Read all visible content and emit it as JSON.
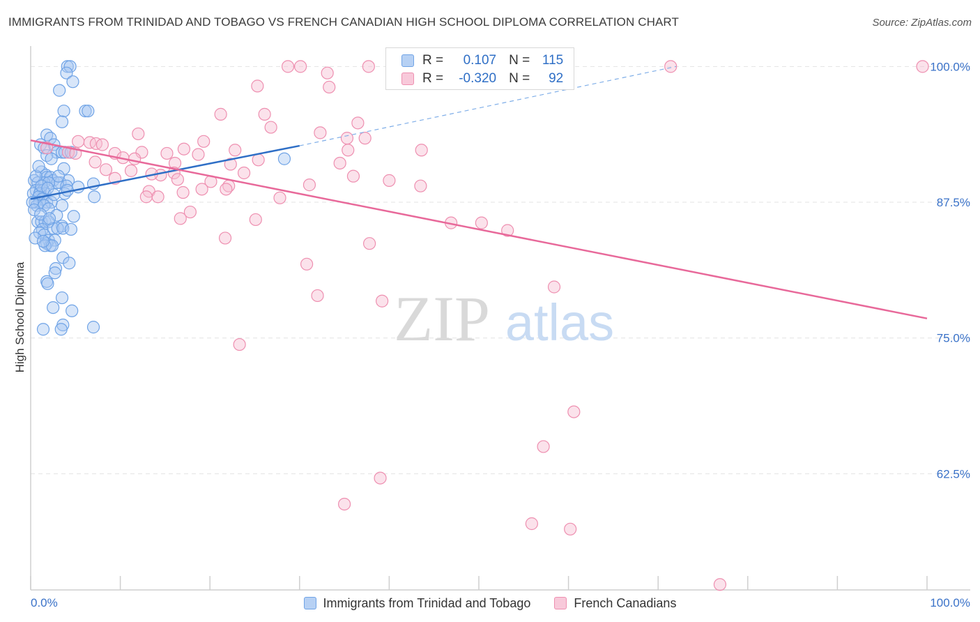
{
  "title": "IMMIGRANTS FROM TRINIDAD AND TOBAGO VS FRENCH CANADIAN HIGH SCHOOL DIPLOMA CORRELATION CHART",
  "source": "Source: ZipAtlas.com",
  "watermark": {
    "zip": "ZIP",
    "atlas": "atlas"
  },
  "colors": {
    "blue": "#6fa3e6",
    "blue_fill": "#a9c8f2",
    "blue_line": "#2f6fc6",
    "pink": "#ee8fb0",
    "pink_fill": "#f6bfd3",
    "pink_line": "#e8699a",
    "tick_text": "#3a72c8",
    "grid": "#e3e3e3"
  },
  "correlation_box": {
    "rows": [
      {
        "r_label": "R =",
        "r_value": "0.107",
        "n_label": "N =",
        "n_value": "115"
      },
      {
        "r_label": "R =",
        "r_value": "-0.320",
        "n_label": "N =",
        "n_value": "92"
      }
    ]
  },
  "legend": [
    {
      "label": "Immigrants from Trinidad and Tobago"
    },
    {
      "label": "French Canadians"
    }
  ],
  "chart_data": {
    "type": "scatter",
    "xlabel": "",
    "ylabel": "High School Diploma",
    "xlim": [
      0,
      100
    ],
    "ylim": [
      51.8,
      101.5
    ],
    "x_tick_labels": [
      "0.0%",
      "100.0%"
    ],
    "y_ticks": [
      62.5,
      75.0,
      87.5,
      100.0
    ],
    "y_tick_labels": [
      "62.5%",
      "75.0%",
      "87.5%",
      "100.0%"
    ],
    "grid": true,
    "legend_position": "bottom",
    "series": [
      {
        "name": "Immigrants from Trinidad and Tobago",
        "color": "#6fa3e6",
        "trend": {
          "x": [
            0,
            30
          ],
          "y": [
            87.8,
            92.7
          ],
          "extended_x": [
            30,
            72
          ],
          "extended_y": [
            92.7,
            100.0
          ]
        },
        "points": [
          [
            4.1,
            100
          ],
          [
            4.4,
            100
          ],
          [
            4.0,
            99.4
          ],
          [
            4.7,
            98.6
          ],
          [
            3.2,
            97.8
          ],
          [
            6.1,
            95.9
          ],
          [
            6.4,
            95.9
          ],
          [
            3.7,
            95.9
          ],
          [
            3.5,
            94.9
          ],
          [
            1.8,
            93.7
          ],
          [
            2.2,
            93.4
          ],
          [
            2.6,
            92.8
          ],
          [
            1.1,
            92.8
          ],
          [
            1.5,
            92.5
          ],
          [
            2.9,
            92.1
          ],
          [
            3.5,
            92.1
          ],
          [
            3.8,
            92.1
          ],
          [
            4.5,
            92.1
          ],
          [
            1.8,
            91.8
          ],
          [
            2.3,
            91.5
          ],
          [
            28.3,
            91.5
          ],
          [
            3.7,
            90.6
          ],
          [
            1.2,
            90.3
          ],
          [
            1.7,
            90.0
          ],
          [
            1.8,
            89.8
          ],
          [
            2.2,
            89.8
          ],
          [
            2.5,
            89.5
          ],
          [
            3.3,
            89.3
          ],
          [
            4.2,
            89.5
          ],
          [
            3.0,
            89.3
          ],
          [
            0.4,
            89.5
          ],
          [
            0.8,
            89.3
          ],
          [
            1.5,
            89.3
          ],
          [
            2.0,
            89.3
          ],
          [
            7.0,
            89.2
          ],
          [
            4.0,
            89.0
          ],
          [
            0.6,
            88.6
          ],
          [
            1.1,
            88.6
          ],
          [
            1.4,
            88.6
          ],
          [
            1.6,
            88.3
          ],
          [
            0.3,
            88.3
          ],
          [
            1.0,
            88.3
          ],
          [
            3.8,
            88.3
          ],
          [
            5.3,
            88.9
          ],
          [
            7.1,
            88.0
          ],
          [
            0.9,
            88.0
          ],
          [
            1.3,
            87.8
          ],
          [
            0.5,
            87.5
          ],
          [
            1.0,
            87.5
          ],
          [
            1.8,
            87.5
          ],
          [
            2.3,
            87.5
          ],
          [
            0.7,
            87.2
          ],
          [
            1.5,
            87.2
          ],
          [
            3.5,
            87.2
          ],
          [
            0.2,
            87.5
          ],
          [
            2.0,
            86.9
          ],
          [
            2.9,
            86.3
          ],
          [
            4.8,
            86.2
          ],
          [
            0.8,
            85.7
          ],
          [
            1.2,
            85.7
          ],
          [
            1.6,
            85.7
          ],
          [
            2.0,
            85.7
          ],
          [
            3.5,
            85.3
          ],
          [
            1.3,
            85.0
          ],
          [
            2.5,
            85.1
          ],
          [
            3.0,
            85.1
          ],
          [
            3.6,
            85.1
          ],
          [
            4.5,
            85.0
          ],
          [
            1.0,
            84.7
          ],
          [
            1.5,
            84.5
          ],
          [
            2.0,
            84.0
          ],
          [
            2.7,
            84.0
          ],
          [
            1.8,
            83.7
          ],
          [
            2.2,
            83.5
          ],
          [
            1.6,
            83.5
          ],
          [
            2.4,
            83.5
          ],
          [
            3.6,
            82.4
          ],
          [
            4.3,
            81.9
          ],
          [
            2.8,
            81.4
          ],
          [
            2.7,
            81.0
          ],
          [
            1.8,
            80.2
          ],
          [
            1.9,
            80.0
          ],
          [
            3.5,
            78.7
          ],
          [
            2.5,
            77.8
          ],
          [
            4.6,
            77.5
          ],
          [
            3.6,
            76.2
          ],
          [
            7.0,
            76.0
          ],
          [
            1.4,
            75.8
          ],
          [
            3.4,
            75.8
          ],
          [
            0.6,
            89.9
          ],
          [
            0.9,
            90.8
          ],
          [
            1.2,
            89.0
          ],
          [
            1.9,
            88.8
          ],
          [
            2.6,
            88.2
          ],
          [
            0.4,
            86.8
          ],
          [
            1.1,
            86.4
          ],
          [
            2.1,
            86.0
          ],
          [
            0.5,
            84.2
          ],
          [
            1.4,
            83.9
          ],
          [
            3.1,
            89.9
          ],
          [
            4.1,
            88.6
          ]
        ]
      },
      {
        "name": "French Canadians",
        "color": "#ee8fb0",
        "trend": {
          "x": [
            0,
            100
          ],
          "y": [
            93.2,
            76.8
          ]
        },
        "points": [
          [
            28.7,
            100
          ],
          [
            30.1,
            100
          ],
          [
            37.7,
            100
          ],
          [
            47.3,
            100
          ],
          [
            50.3,
            100
          ],
          [
            71.4,
            100
          ],
          [
            99.5,
            100
          ],
          [
            33.1,
            99.4
          ],
          [
            33.3,
            98.1
          ],
          [
            25.3,
            98.2
          ],
          [
            26.1,
            95.6
          ],
          [
            21.2,
            95.6
          ],
          [
            36.5,
            94.8
          ],
          [
            26.8,
            94.4
          ],
          [
            32.3,
            93.9
          ],
          [
            12.0,
            93.8
          ],
          [
            35.3,
            93.4
          ],
          [
            37.3,
            93.4
          ],
          [
            19.3,
            93.1
          ],
          [
            5.3,
            93.1
          ],
          [
            6.6,
            93.0
          ],
          [
            7.3,
            92.9
          ],
          [
            8.0,
            92.8
          ],
          [
            1.8,
            92.5
          ],
          [
            17.1,
            92.4
          ],
          [
            22.8,
            92.3
          ],
          [
            35.4,
            92.3
          ],
          [
            43.6,
            92.3
          ],
          [
            9.4,
            92.0
          ],
          [
            4.2,
            92.1
          ],
          [
            5.0,
            92.0
          ],
          [
            12.4,
            92.1
          ],
          [
            15.2,
            92.0
          ],
          [
            18.7,
            91.9
          ],
          [
            10.3,
            91.6
          ],
          [
            25.4,
            91.4
          ],
          [
            11.6,
            91.5
          ],
          [
            7.2,
            91.2
          ],
          [
            16.1,
            91.1
          ],
          [
            34.5,
            91.1
          ],
          [
            22.3,
            91.0
          ],
          [
            8.4,
            90.5
          ],
          [
            11.2,
            90.4
          ],
          [
            16.0,
            90.2
          ],
          [
            14.5,
            90.0
          ],
          [
            13.5,
            90.1
          ],
          [
            23.8,
            90.2
          ],
          [
            36.0,
            89.9
          ],
          [
            9.4,
            89.7
          ],
          [
            16.4,
            89.6
          ],
          [
            20.1,
            89.4
          ],
          [
            40.0,
            89.5
          ],
          [
            43.5,
            89.0
          ],
          [
            31.1,
            89.1
          ],
          [
            22.1,
            89.0
          ],
          [
            21.8,
            88.7
          ],
          [
            19.1,
            88.7
          ],
          [
            17.0,
            88.4
          ],
          [
            13.2,
            88.5
          ],
          [
            12.9,
            88.0
          ],
          [
            14.2,
            88.0
          ],
          [
            27.8,
            87.9
          ],
          [
            17.8,
            86.6
          ],
          [
            16.7,
            86.0
          ],
          [
            25.1,
            85.9
          ],
          [
            46.9,
            85.6
          ],
          [
            50.3,
            85.6
          ],
          [
            53.2,
            84.9
          ],
          [
            21.7,
            84.2
          ],
          [
            37.8,
            83.7
          ],
          [
            30.8,
            81.8
          ],
          [
            58.4,
            79.7
          ],
          [
            32.0,
            78.9
          ],
          [
            39.2,
            78.4
          ],
          [
            23.3,
            74.4
          ],
          [
            60.6,
            68.2
          ],
          [
            57.2,
            65.0
          ],
          [
            39.0,
            62.1
          ],
          [
            35.0,
            59.7
          ],
          [
            55.9,
            57.9
          ],
          [
            60.2,
            57.4
          ],
          [
            76.9,
            52.3
          ]
        ]
      }
    ]
  }
}
